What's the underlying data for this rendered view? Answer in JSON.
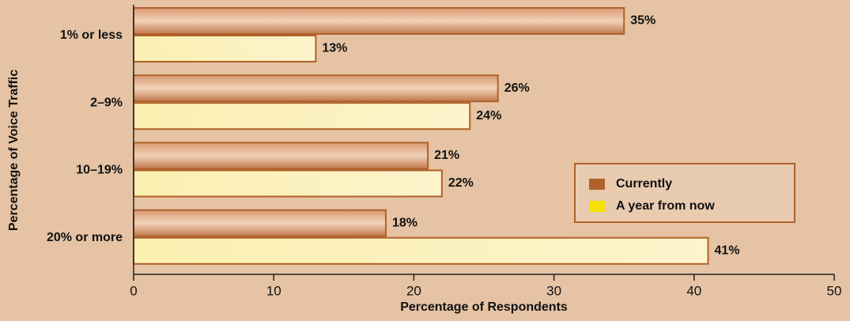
{
  "chart_data": {
    "type": "barh",
    "xlabel": "Percentage of Respondents",
    "ylabel": "Percentage of Voice Traffic",
    "categories": [
      "1% or less",
      "2–9%",
      "10–19%",
      "20% or more"
    ],
    "series": [
      {
        "name": "Currently",
        "color": "#b0622a",
        "values": [
          35,
          26,
          21,
          18
        ],
        "value_labels": [
          "35%",
          "26%",
          "21%",
          "18%"
        ]
      },
      {
        "name": "A year from now",
        "color": "#f6e000",
        "values": [
          13,
          24,
          22,
          41
        ],
        "value_labels": [
          "13%",
          "24%",
          "22%",
          "41%"
        ]
      }
    ],
    "xlim": [
      0,
      50
    ],
    "xticks": [
      0,
      10,
      20,
      30,
      40,
      50
    ],
    "legend": "right"
  }
}
